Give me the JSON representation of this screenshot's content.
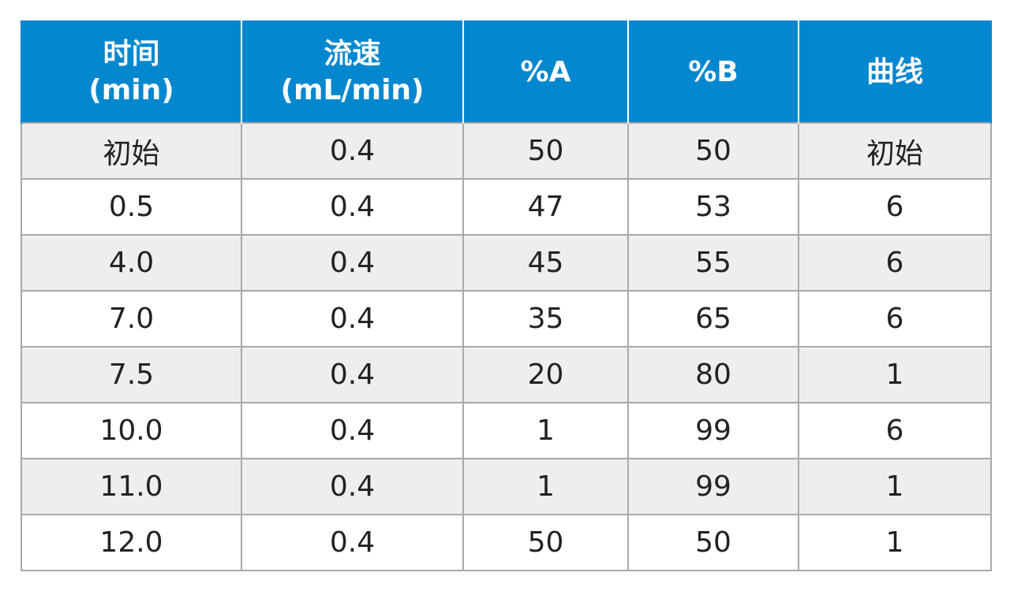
{
  "table": {
    "headers": [
      {
        "line1": "时间",
        "line2": "(min)"
      },
      {
        "line1": "流速",
        "line2": "(mL/min)"
      },
      {
        "line1": "%A",
        "line2": ""
      },
      {
        "line1": "%B",
        "line2": ""
      },
      {
        "line1": "曲线",
        "line2": ""
      }
    ],
    "rows": [
      [
        "初始",
        "0.4",
        "50",
        "50",
        "初始"
      ],
      [
        "0.5",
        "0.4",
        "47",
        "53",
        "6"
      ],
      [
        "4.0",
        "0.4",
        "45",
        "55",
        "6"
      ],
      [
        "7.0",
        "0.4",
        "35",
        "65",
        "6"
      ],
      [
        "7.5",
        "0.4",
        "20",
        "80",
        "1"
      ],
      [
        "10.0",
        "0.4",
        "1",
        "99",
        "6"
      ],
      [
        "11.0",
        "0.4",
        "1",
        "99",
        "1"
      ],
      [
        "12.0",
        "0.4",
        "50",
        "50",
        "1"
      ]
    ],
    "colors": {
      "header_bg": "#0387cf",
      "header_text": "#ffffff",
      "row_alt_bg": "#eeeef0",
      "row_bg": "#ffffff",
      "border": "#a9a9a9"
    }
  }
}
